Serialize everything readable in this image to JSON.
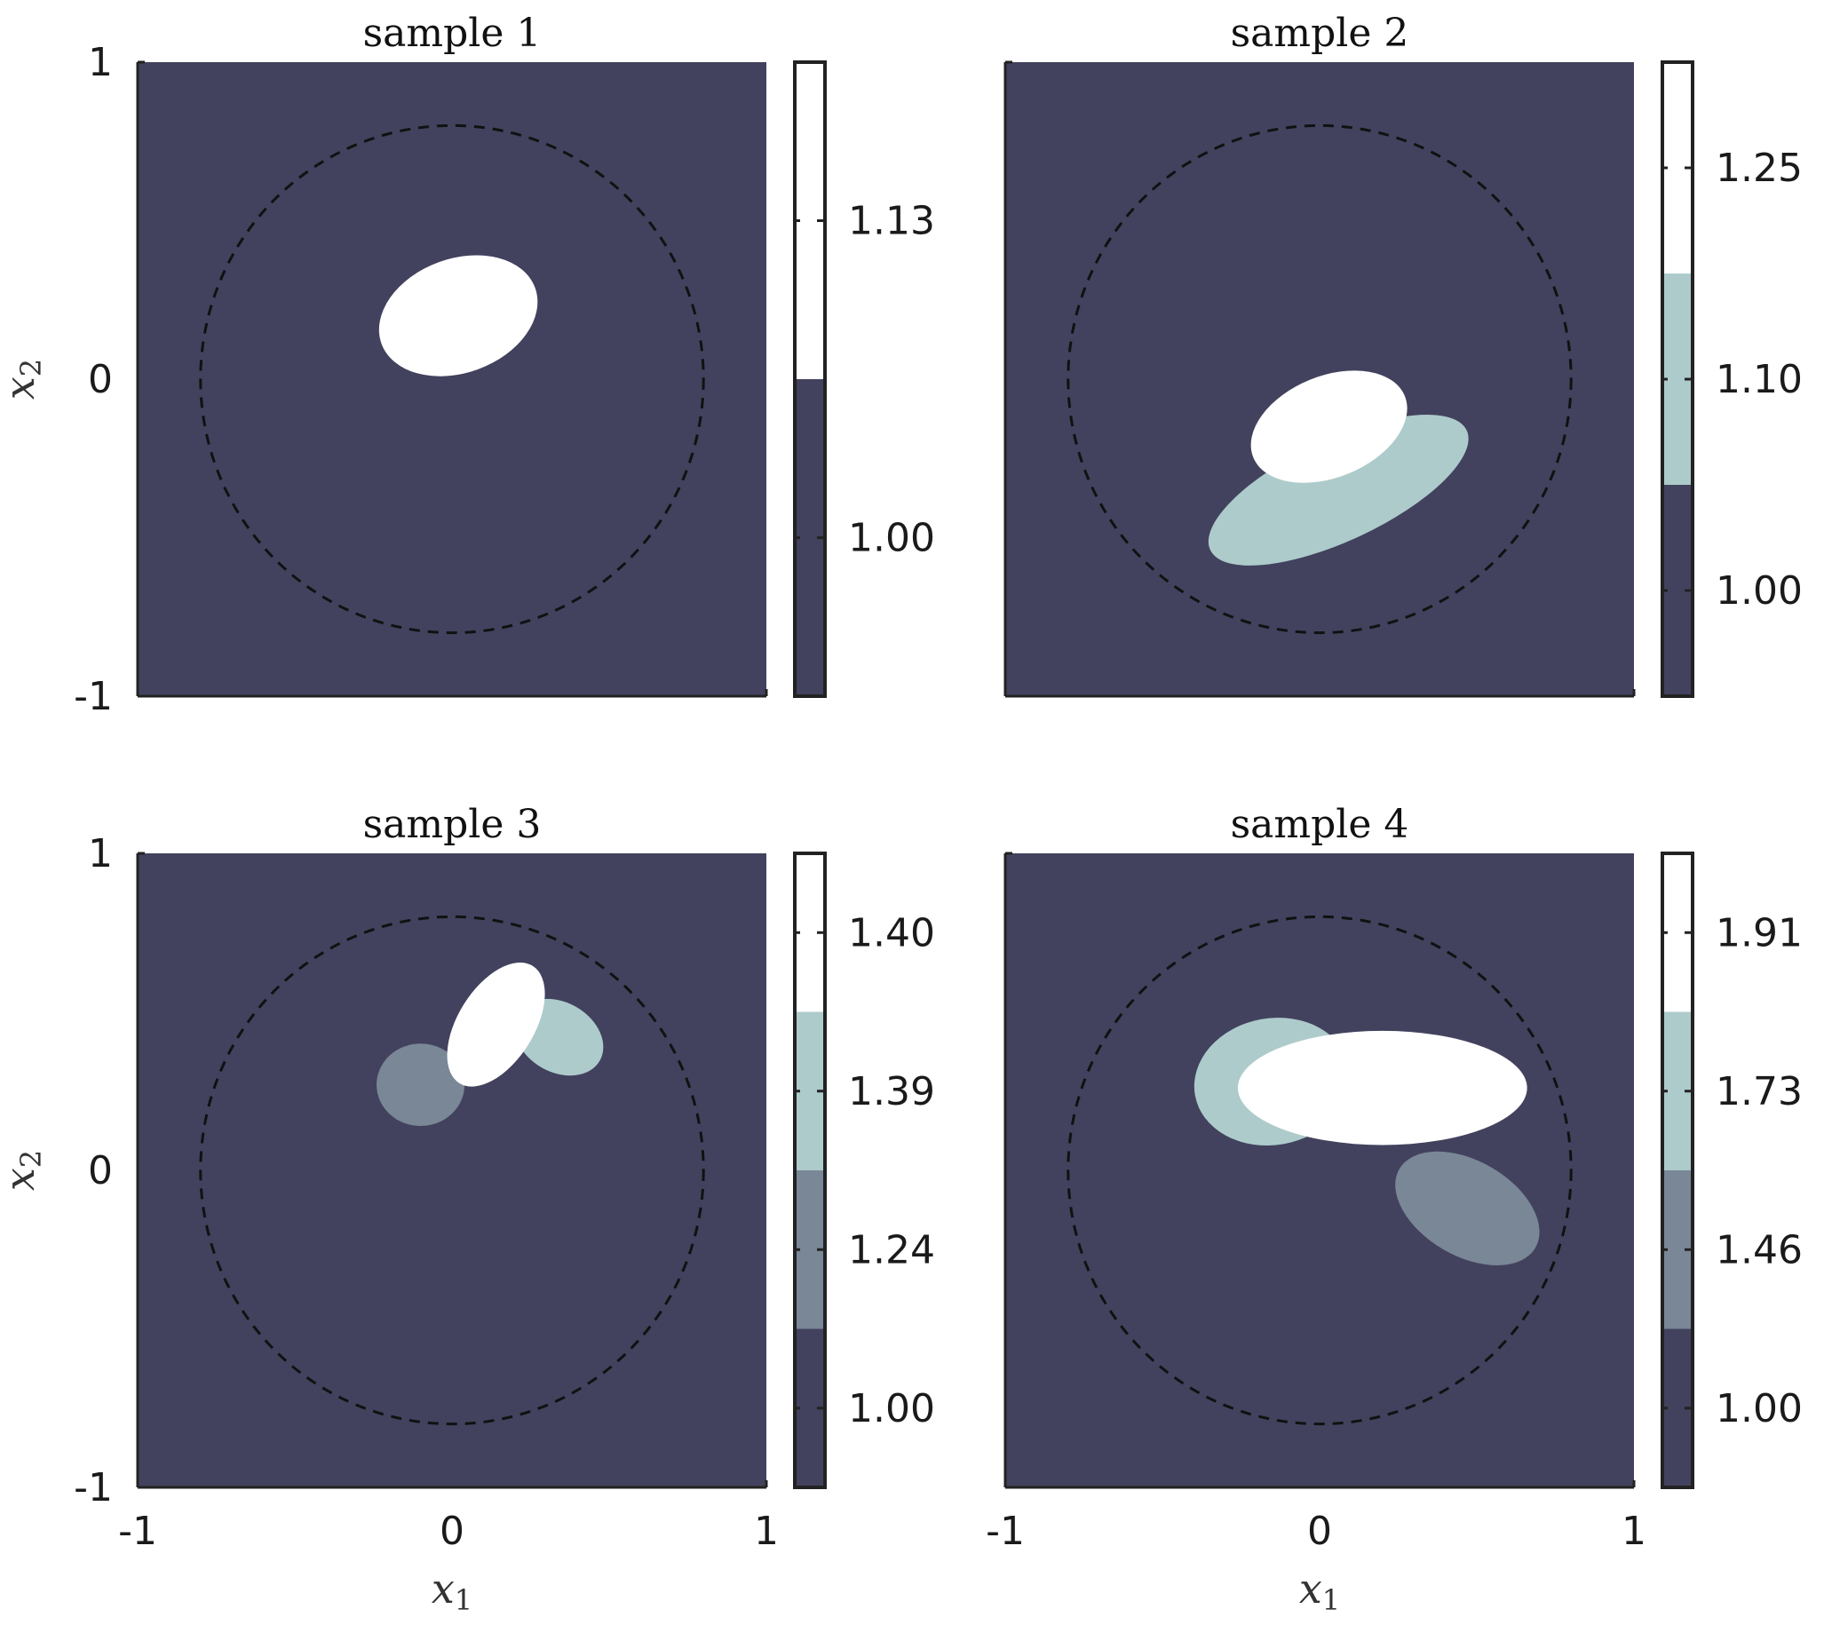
{
  "chart_data": [
    {
      "type": "heatmap",
      "title": "sample 1",
      "xlim": [
        -1,
        1
      ],
      "ylim": [
        -1,
        1
      ],
      "xticks": [],
      "yticks": [
        "1",
        "0",
        "-1"
      ],
      "xlabel": "",
      "ylabel": "x_2",
      "background_level": 0,
      "boundary_circle_radius": 0.8,
      "ellipses": [
        {
          "cx": 0.02,
          "cy": 0.2,
          "rx": 0.26,
          "ry": 0.18,
          "angle_deg": 20,
          "level": 1
        }
      ],
      "colorbar": {
        "colors": [
          "#42425e",
          "#ffffff"
        ],
        "tick_labels": [
          "1.00",
          "1.13"
        ]
      }
    },
    {
      "type": "heatmap",
      "title": "sample 2",
      "xlim": [
        -1,
        1
      ],
      "ylim": [
        -1,
        1
      ],
      "xticks": [],
      "yticks": [],
      "xlabel": "",
      "ylabel": "",
      "background_level": 0,
      "boundary_circle_radius": 0.8,
      "ellipses": [
        {
          "cx": 0.06,
          "cy": -0.35,
          "rx": 0.45,
          "ry": 0.16,
          "angle_deg": 25,
          "level": 1
        },
        {
          "cx": 0.03,
          "cy": -0.15,
          "rx": 0.26,
          "ry": 0.16,
          "angle_deg": 22,
          "level": 2
        }
      ],
      "colorbar": {
        "colors": [
          "#42425e",
          "#aecbcb",
          "#ffffff"
        ],
        "tick_labels": [
          "1.00",
          "1.10",
          "1.25"
        ]
      }
    },
    {
      "type": "heatmap",
      "title": "sample 3",
      "xlim": [
        -1,
        1
      ],
      "ylim": [
        -1,
        1
      ],
      "xticks": [
        "-1",
        "0",
        "1"
      ],
      "yticks": [
        "1",
        "0",
        "-1"
      ],
      "xlabel": "x_1",
      "ylabel": "x_2",
      "background_level": 0,
      "boundary_circle_radius": 0.8,
      "ellipses": [
        {
          "cx": -0.1,
          "cy": 0.27,
          "rx": 0.14,
          "ry": 0.13,
          "angle_deg": 0,
          "level": 1
        },
        {
          "cx": 0.34,
          "cy": 0.42,
          "rx": 0.15,
          "ry": 0.11,
          "angle_deg": -30,
          "level": 2
        },
        {
          "cx": 0.14,
          "cy": 0.46,
          "rx": 0.22,
          "ry": 0.12,
          "angle_deg": 58,
          "level": 3
        }
      ],
      "colorbar": {
        "colors": [
          "#42425e",
          "#798797",
          "#aecbcb",
          "#ffffff"
        ],
        "tick_labels": [
          "1.00",
          "1.24",
          "1.39",
          "1.40"
        ]
      }
    },
    {
      "type": "heatmap",
      "title": "sample 4",
      "xlim": [
        -1,
        1
      ],
      "ylim": [
        -1,
        1
      ],
      "xticks": [
        "-1",
        "0",
        "1"
      ],
      "yticks": [],
      "xlabel": "x_1",
      "ylabel": "",
      "background_level": 0,
      "boundary_circle_radius": 0.8,
      "ellipses": [
        {
          "cx": 0.47,
          "cy": -0.12,
          "rx": 0.25,
          "ry": 0.15,
          "angle_deg": -30,
          "level": 1
        },
        {
          "cx": -0.15,
          "cy": 0.28,
          "rx": 0.25,
          "ry": 0.2,
          "angle_deg": 10,
          "level": 2
        },
        {
          "cx": 0.2,
          "cy": 0.26,
          "rx": 0.46,
          "ry": 0.18,
          "angle_deg": 0,
          "level": 3
        }
      ],
      "colorbar": {
        "colors": [
          "#42425e",
          "#798797",
          "#aecbcb",
          "#ffffff"
        ],
        "tick_labels": [
          "1.00",
          "1.46",
          "1.73",
          "1.91"
        ]
      }
    }
  ]
}
